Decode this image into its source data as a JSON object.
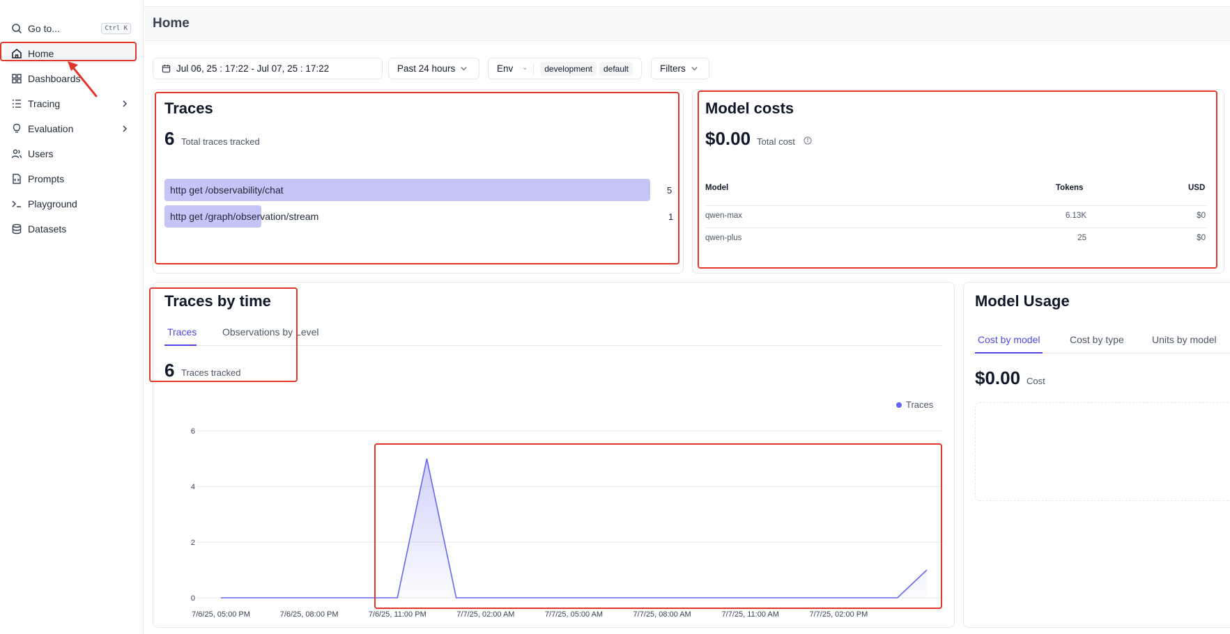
{
  "sidebar": {
    "goto_label": "Go to...",
    "goto_shortcut": "Ctrl K",
    "items": [
      {
        "label": "Home",
        "icon": "home-icon"
      },
      {
        "label": "Dashboards",
        "icon": "dashboard-icon"
      },
      {
        "label": "Tracing",
        "icon": "tracing-icon"
      },
      {
        "label": "Evaluation",
        "icon": "lightbulb-icon"
      },
      {
        "label": "Users",
        "icon": "users-icon"
      },
      {
        "label": "Prompts",
        "icon": "file-code-icon"
      },
      {
        "label": "Playground",
        "icon": "terminal-icon"
      },
      {
        "label": "Datasets",
        "icon": "database-icon"
      }
    ]
  },
  "header": {
    "title": "Home"
  },
  "filters": {
    "date_range": "Jul 06, 25 : 17:22 - Jul 07, 25 : 17:22",
    "period": "Past 24 hours",
    "env_label": "Env",
    "env_tags": [
      "development",
      "default"
    ],
    "filters_label": "Filters"
  },
  "traces_card": {
    "title": "Traces",
    "total": "6",
    "total_label": "Total traces tracked",
    "rows": [
      {
        "name": "http get /observability/chat",
        "count": "5",
        "value": 5
      },
      {
        "name": "http get /graph/observation/stream",
        "count": "1",
        "value": 1
      }
    ]
  },
  "model_costs": {
    "title": "Model costs",
    "total": "$0.00",
    "total_label": "Total cost",
    "headers": {
      "model": "Model",
      "tokens": "Tokens",
      "usd": "USD"
    },
    "rows": [
      {
        "model": "qwen-max",
        "tokens": "6.13K",
        "usd": "$0"
      },
      {
        "model": "qwen-plus",
        "tokens": "25",
        "usd": "$0"
      }
    ]
  },
  "traces_by_time": {
    "title": "Traces by time",
    "tabs": [
      "Traces",
      "Observations by Level"
    ],
    "count": "6",
    "count_label": "Traces tracked",
    "legend": "Traces"
  },
  "model_usage": {
    "title": "Model Usage",
    "tabs": [
      "Cost by model",
      "Cost by type",
      "Units by model"
    ],
    "total": "$0.00",
    "total_label": "Cost"
  },
  "colors": {
    "accent": "#4f46e5",
    "line": "#6366f1",
    "bar": "#c4c4f7",
    "highlight": "#e0362c"
  },
  "chart_data": {
    "type": "area",
    "title": "",
    "xlabel": "",
    "ylabel": "",
    "ylim": [
      0,
      6
    ],
    "yticks": [
      "0",
      "2",
      "4",
      "6"
    ],
    "xticks": [
      "7/6/25, 05:00 PM",
      "7/6/25, 08:00 PM",
      "7/6/25, 11:00 PM",
      "7/7/25, 02:00 AM",
      "7/7/25, 05:00 AM",
      "7/7/25, 08:00 AM",
      "7/7/25, 11:00 AM",
      "7/7/25, 02:00 PM"
    ],
    "legend_position": "top-right",
    "grid": true,
    "series": [
      {
        "name": "Traces",
        "x": [
          0,
          1,
          2,
          3,
          4,
          5,
          6,
          7,
          8,
          9,
          10,
          11,
          12,
          13,
          14,
          15,
          16,
          17,
          18,
          19,
          20,
          21,
          22,
          23,
          24
        ],
        "values": [
          0,
          0,
          0,
          0,
          0,
          0,
          0,
          5,
          0,
          0,
          0,
          0,
          0,
          0,
          0,
          0,
          0,
          0,
          0,
          0,
          0,
          0,
          0,
          0,
          1
        ]
      }
    ]
  }
}
